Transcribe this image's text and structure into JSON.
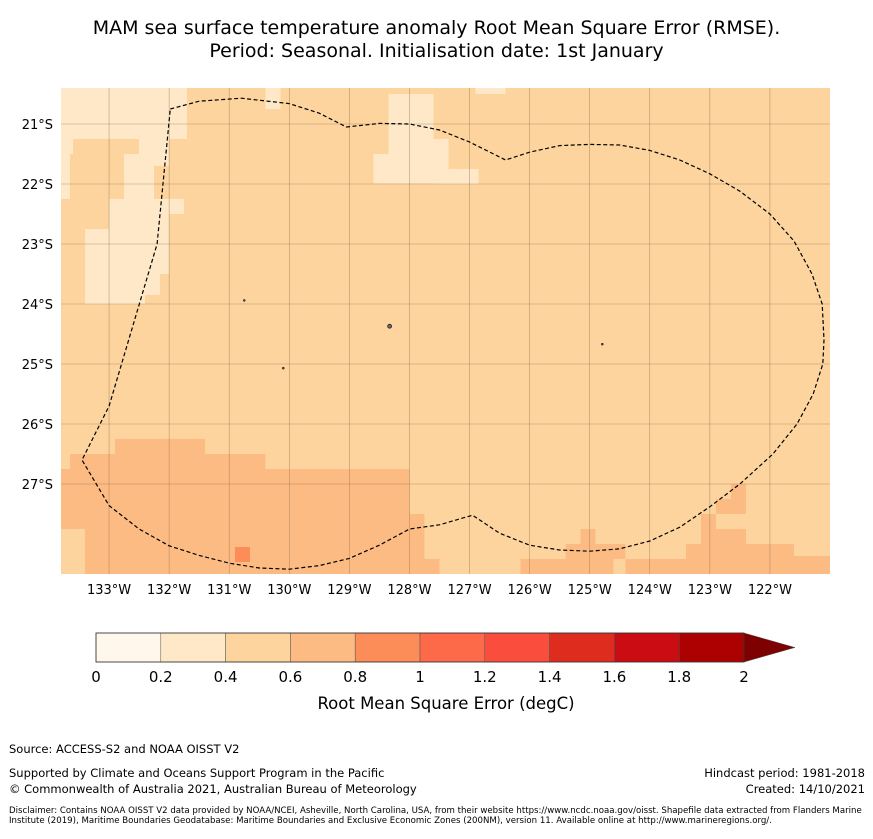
{
  "title": {
    "line1": "MAM sea surface temperature anomaly Root Mean Square Error (RMSE).",
    "line2": "Period: Seasonal. Initialisation date: 1st January"
  },
  "map": {
    "lon_range": [
      -133.8,
      -121.0
    ],
    "lat_range": [
      -28.5,
      -20.4
    ],
    "lon_ticks": [
      {
        "value": -133,
        "label": "133°W"
      },
      {
        "value": -132,
        "label": "132°W"
      },
      {
        "value": -131,
        "label": "131°W"
      },
      {
        "value": -130,
        "label": "130°W"
      },
      {
        "value": -129,
        "label": "129°W"
      },
      {
        "value": -128,
        "label": "128°W"
      },
      {
        "value": -127,
        "label": "127°W"
      },
      {
        "value": -126,
        "label": "126°W"
      },
      {
        "value": -125,
        "label": "125°W"
      },
      {
        "value": -124,
        "label": "124°W"
      },
      {
        "value": -123,
        "label": "123°W"
      },
      {
        "value": -122,
        "label": "122°W"
      }
    ],
    "lat_ticks": [
      {
        "value": -21,
        "label": "21°S"
      },
      {
        "value": -22,
        "label": "22°S"
      },
      {
        "value": -23,
        "label": "23°S"
      },
      {
        "value": -24,
        "label": "24°S"
      },
      {
        "value": -25,
        "label": "25°S"
      },
      {
        "value": -26,
        "label": "26°S"
      },
      {
        "value": -27,
        "label": "27°S"
      }
    ],
    "background_value_band": "0.4-0.6",
    "background_color": "#fdd49e",
    "patches": [
      {
        "band": "0.2-0.4",
        "color": "#fee8c8",
        "lon": [
          -133.8,
          -132.5
        ],
        "lat": [
          -21.25,
          -20.4
        ]
      },
      {
        "band": "0.2-0.4",
        "color": "#fee8c8",
        "lon": [
          -132.5,
          -132.0
        ],
        "lat": [
          -21.7,
          -20.4
        ]
      },
      {
        "band": "0.2-0.4",
        "color": "#fee8c8",
        "lon": [
          -132.0,
          -131.7
        ],
        "lat": [
          -21.25,
          -20.4
        ]
      },
      {
        "band": "0.2-0.4",
        "color": "#fee8c8",
        "lon": [
          -133.8,
          -133.6
        ],
        "lat": [
          -21.5,
          -21.25
        ]
      },
      {
        "band": "0.2-0.4",
        "color": "#fee8c8",
        "lon": [
          -133.8,
          -133.65
        ],
        "lat": [
          -22.25,
          -21.5
        ]
      },
      {
        "band": "0.2-0.4",
        "color": "#fee8c8",
        "lon": [
          -132.75,
          -132.25
        ],
        "lat": [
          -22.25,
          -21.5
        ]
      },
      {
        "band": "0.2-0.4",
        "color": "#fee8c8",
        "lon": [
          -132.25,
          -131.75
        ],
        "lat": [
          -22.5,
          -22.25
        ]
      },
      {
        "band": "0.2-0.4",
        "color": "#fee8c8",
        "lon": [
          -133.0,
          -132.0
        ],
        "lat": [
          -22.75,
          -22.25
        ]
      },
      {
        "band": "0.2-0.4",
        "color": "#fee8c8",
        "lon": [
          -133.4,
          -132.0
        ],
        "lat": [
          -23.5,
          -22.75
        ]
      },
      {
        "band": "0.2-0.4",
        "color": "#fee8c8",
        "lon": [
          -133.4,
          -132.4
        ],
        "lat": [
          -24.0,
          -23.5
        ]
      },
      {
        "band": "0.2-0.4",
        "color": "#fee8c8",
        "lon": [
          -132.4,
          -132.15
        ],
        "lat": [
          -23.85,
          -23.5
        ]
      },
      {
        "band": "0.2-0.4",
        "color": "#fee8c8",
        "lon": [
          -130.4,
          -130.15
        ],
        "lat": [
          -20.75,
          -20.4
        ]
      },
      {
        "band": "0.2-0.4",
        "color": "#fee8c8",
        "lon": [
          -128.35,
          -127.6
        ],
        "lat": [
          -21.5,
          -20.5
        ]
      },
      {
        "band": "0.2-0.4",
        "color": "#fee8c8",
        "lon": [
          -127.6,
          -127.35
        ],
        "lat": [
          -21.75,
          -21.25
        ]
      },
      {
        "band": "0.2-0.4",
        "color": "#fee8c8",
        "lon": [
          -128.6,
          -127.35
        ],
        "lat": [
          -21.99,
          -21.5
        ]
      },
      {
        "band": "0.2-0.4",
        "color": "#fee8c8",
        "lon": [
          -127.6,
          -126.85
        ],
        "lat": [
          -22.0,
          -21.75
        ]
      },
      {
        "band": "0.2-0.4",
        "color": "#fee8c8",
        "lon": [
          -127.6,
          -126.85
        ],
        "lat": [
          -22.0,
          -21.75
        ]
      },
      {
        "band": "0.2-0.4",
        "color": "#fee8c8",
        "lon": [
          -127.4,
          -126.85
        ],
        "lat": [
          -22.0,
          -21.75
        ]
      },
      {
        "band": "0.2-0.4",
        "color": "#fee8c8",
        "lon": [
          -126.9,
          -126.4
        ],
        "lat": [
          -20.5,
          -20.4
        ]
      },
      {
        "band": "0.6-0.8",
        "color": "#fdbb84",
        "lon": [
          -133.65,
          -133.4
        ],
        "lat": [
          -26.75,
          -26.5
        ]
      },
      {
        "band": "0.6-0.8",
        "color": "#fdbb84",
        "lon": [
          -133.8,
          -133.4
        ],
        "lat": [
          -27.75,
          -26.75
        ]
      },
      {
        "band": "0.6-0.8",
        "color": "#fdbb84",
        "lon": [
          -133.4,
          -132.9
        ],
        "lat": [
          -28.5,
          -26.5
        ]
      },
      {
        "band": "0.6-0.8",
        "color": "#fdbb84",
        "lon": [
          -132.9,
          -131.4
        ],
        "lat": [
          -28.5,
          -26.25
        ]
      },
      {
        "band": "0.6-0.8",
        "color": "#fdbb84",
        "lon": [
          -131.4,
          -130.4
        ],
        "lat": [
          -28.5,
          -26.5
        ]
      },
      {
        "band": "0.6-0.8",
        "color": "#fdbb84",
        "lon": [
          -130.4,
          -128.0
        ],
        "lat": [
          -28.5,
          -26.75
        ]
      },
      {
        "band": "0.6-0.8",
        "color": "#fdbb84",
        "lon": [
          -128.0,
          -127.75
        ],
        "lat": [
          -28.0,
          -27.5
        ]
      },
      {
        "band": "0.6-0.8",
        "color": "#fdbb84",
        "lon": [
          -128.0,
          -127.75
        ],
        "lat": [
          -28.5,
          -28.0
        ]
      },
      {
        "band": "0.6-0.8",
        "color": "#fdbb84",
        "lon": [
          -127.75,
          -127.5
        ],
        "lat": [
          -28.5,
          -28.25
        ]
      },
      {
        "band": "0.6-0.8",
        "color": "#fdbb84",
        "lon": [
          -126.15,
          -124.6
        ],
        "lat": [
          -28.5,
          -28.25
        ]
      },
      {
        "band": "0.6-0.8",
        "color": "#fdbb84",
        "lon": [
          -125.4,
          -124.4
        ],
        "lat": [
          -28.25,
          -28.0
        ]
      },
      {
        "band": "0.6-0.8",
        "color": "#fdbb84",
        "lon": [
          -125.15,
          -124.9
        ],
        "lat": [
          -28.0,
          -27.75
        ]
      },
      {
        "band": "0.6-0.8",
        "color": "#fdbb84",
        "lon": [
          -124.4,
          -121.6
        ],
        "lat": [
          -28.5,
          -28.25
        ]
      },
      {
        "band": "0.6-0.8",
        "color": "#fdbb84",
        "lon": [
          -123.4,
          -121.6
        ],
        "lat": [
          -28.25,
          -28.0
        ]
      },
      {
        "band": "0.6-0.8",
        "color": "#fdbb84",
        "lon": [
          -123.15,
          -122.4
        ],
        "lat": [
          -28.0,
          -27.75
        ]
      },
      {
        "band": "0.6-0.8",
        "color": "#fdbb84",
        "lon": [
          -123.15,
          -122.9
        ],
        "lat": [
          -27.75,
          -27.5
        ]
      },
      {
        "band": "0.6-0.8",
        "color": "#fdbb84",
        "lon": [
          -122.9,
          -122.4
        ],
        "lat": [
          -27.5,
          -27.25
        ]
      },
      {
        "band": "0.6-0.8",
        "color": "#fdbb84",
        "lon": [
          -122.65,
          -122.4
        ],
        "lat": [
          -27.25,
          -27.0
        ]
      },
      {
        "band": "0.6-0.8",
        "color": "#fdbb84",
        "lon": [
          -121.6,
          -121.0
        ],
        "lat": [
          -28.5,
          -28.2
        ]
      },
      {
        "band": "0.8-1.0",
        "color": "#fc8d59",
        "lon": [
          -130.9,
          -130.65
        ],
        "lat": [
          -28.3,
          -28.05
        ]
      }
    ],
    "eez_boundary": [
      [
        -131.98,
        -20.75
      ],
      [
        -131.5,
        -20.62
      ],
      [
        -130.8,
        -20.57
      ],
      [
        -130.0,
        -20.66
      ],
      [
        -129.5,
        -20.82
      ],
      [
        -129.05,
        -21.05
      ],
      [
        -128.5,
        -20.99
      ],
      [
        -128.0,
        -21.0
      ],
      [
        -127.5,
        -21.1
      ],
      [
        -127.0,
        -21.3
      ],
      [
        -126.6,
        -21.5
      ],
      [
        -126.4,
        -21.6
      ],
      [
        -126.0,
        -21.47
      ],
      [
        -125.5,
        -21.36
      ],
      [
        -125.0,
        -21.34
      ],
      [
        -124.5,
        -21.35
      ],
      [
        -124.0,
        -21.44
      ],
      [
        -123.5,
        -21.6
      ],
      [
        -123.0,
        -21.83
      ],
      [
        -122.5,
        -22.12
      ],
      [
        -122.0,
        -22.5
      ],
      [
        -121.6,
        -22.95
      ],
      [
        -121.3,
        -23.5
      ],
      [
        -121.13,
        -24.0
      ],
      [
        -121.1,
        -24.6
      ],
      [
        -121.12,
        -25.0
      ],
      [
        -121.28,
        -25.5
      ],
      [
        -121.55,
        -26.0
      ],
      [
        -121.95,
        -26.5
      ],
      [
        -122.5,
        -27.0
      ],
      [
        -123.0,
        -27.38
      ],
      [
        -123.5,
        -27.72
      ],
      [
        -124.0,
        -27.95
      ],
      [
        -124.5,
        -28.08
      ],
      [
        -125.0,
        -28.12
      ],
      [
        -125.5,
        -28.1
      ],
      [
        -126.0,
        -28.02
      ],
      [
        -126.5,
        -27.82
      ],
      [
        -126.95,
        -27.52
      ],
      [
        -127.5,
        -27.68
      ],
      [
        -128.0,
        -27.75
      ],
      [
        -128.5,
        -28.02
      ],
      [
        -129.0,
        -28.24
      ],
      [
        -129.5,
        -28.36
      ],
      [
        -130.0,
        -28.42
      ],
      [
        -130.5,
        -28.4
      ],
      [
        -131.0,
        -28.32
      ],
      [
        -131.5,
        -28.19
      ],
      [
        -132.0,
        -28.03
      ],
      [
        -132.5,
        -27.75
      ],
      [
        -133.0,
        -27.36
      ],
      [
        -133.45,
        -26.6
      ],
      [
        -133.0,
        -25.7
      ],
      [
        -132.2,
        -23.0
      ],
      [
        -131.98,
        -20.75
      ]
    ],
    "islands": [
      {
        "lon": -128.33,
        "lat": -24.37
      },
      {
        "lon": -130.75,
        "lat": -23.94
      },
      {
        "lon": -130.1,
        "lat": -25.07
      },
      {
        "lon": -124.79,
        "lat": -24.67
      }
    ]
  },
  "colorbar": {
    "bands": [
      {
        "from": 0,
        "to": 0.2,
        "color": "#fff7ec"
      },
      {
        "from": 0.2,
        "to": 0.4,
        "color": "#fee8c8"
      },
      {
        "from": 0.4,
        "to": 0.6,
        "color": "#fdd49e"
      },
      {
        "from": 0.6,
        "to": 0.8,
        "color": "#fdbb84"
      },
      {
        "from": 0.8,
        "to": 1.0,
        "color": "#fc8d59"
      },
      {
        "from": 1.0,
        "to": 1.2,
        "color": "#fc6a4a"
      },
      {
        "from": 1.2,
        "to": 1.4,
        "color": "#fb4d3d"
      },
      {
        "from": 1.4,
        "to": 1.6,
        "color": "#de2d1e"
      },
      {
        "from": 1.6,
        "to": 1.8,
        "color": "#cb0c12"
      },
      {
        "from": 1.8,
        "to": 2.0,
        "color": "#ad0000"
      }
    ],
    "extend_color": "#7f0000",
    "tick_labels": [
      "0",
      "0.2",
      "0.4",
      "0.6",
      "0.8",
      "1",
      "1.2",
      "1.4",
      "1.6",
      "1.8",
      "2"
    ],
    "title": "Root Mean Square Error (degC)"
  },
  "footer": {
    "source": "Source: ACCESS-S2 and NOAA OISST V2",
    "supported_by": "Supported by Climate and Oceans Support Program in the Pacific",
    "copyright": "© Commonwealth of Australia 2021, Australian Bureau of Meteorology",
    "hindcast_period": "Hindcast period: 1981-2018",
    "created": "Created: 14/10/2021",
    "disclaimer": "Disclaimer: Contains NOAA OISST V2 data provided by NOAA/NCEI, Asheville, North Carolina, USA, from their website https://www.ncdc.noaa.gov/oisst. Shapefile data extracted from Flanders Marine Institute (2019), Maritime Boundaries Geodatabase: Maritime Boundaries and Exclusive Economic Zones (200NM), version 11. Available online at http://www.marineregions.org/."
  }
}
